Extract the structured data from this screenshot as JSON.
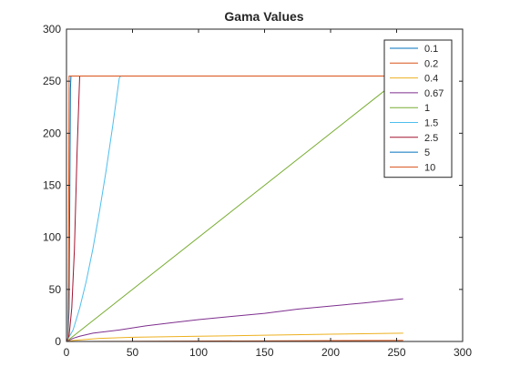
{
  "chart_data": {
    "type": "line",
    "title": "Gama Values",
    "xlabel": "",
    "ylabel": "",
    "xlim": [
      0,
      300
    ],
    "ylim": [
      0,
      300
    ],
    "xticks": [
      0,
      50,
      100,
      150,
      200,
      250,
      300
    ],
    "yticks": [
      0,
      50,
      100,
      150,
      200,
      250,
      300
    ],
    "grid": false,
    "legend_position": "top-right",
    "series": [
      {
        "name": "0.1",
        "color": "#0072BD",
        "x": [
          0,
          255
        ],
        "y": [
          0,
          0
        ]
      },
      {
        "name": "0.2",
        "color": "#D95319",
        "x": [
          0,
          255
        ],
        "y": [
          0,
          1
        ]
      },
      {
        "name": "0.4",
        "color": "#EDB120",
        "x": [
          0,
          5,
          25,
          50,
          100,
          150,
          200,
          255
        ],
        "y": [
          0,
          1,
          3,
          4,
          5,
          6,
          7,
          8
        ]
      },
      {
        "name": "0.67",
        "color": "#7E2F8E",
        "x": [
          0,
          5,
          10,
          20,
          40,
          60,
          80,
          100,
          125,
          150,
          175,
          200,
          225,
          255
        ],
        "y": [
          0,
          3,
          5,
          8,
          11,
          15,
          18,
          21,
          24,
          27,
          31,
          34,
          37,
          41
        ]
      },
      {
        "name": "1",
        "color": "#77AC30",
        "x": [
          0,
          255
        ],
        "y": [
          0,
          255
        ]
      },
      {
        "name": "1.5",
        "color": "#4DBEEE",
        "x": [
          0,
          5,
          10,
          15,
          20,
          25,
          30,
          35,
          40,
          41
        ],
        "y": [
          0,
          11,
          32,
          58,
          89,
          125,
          164,
          207,
          253,
          255
        ]
      },
      {
        "name": "2.5",
        "color": "#A2142F",
        "x": [
          0,
          2,
          4,
          6,
          8,
          10,
          11,
          12
        ],
        "y": [
          0,
          6,
          32,
          88,
          181,
          255,
          255,
          255
        ]
      },
      {
        "name": "5",
        "color": "#0072BD",
        "x": [
          0,
          1,
          2,
          3,
          3.4
        ],
        "y": [
          0,
          1,
          32,
          243,
          255
        ]
      },
      {
        "name": "10",
        "color": "#D95319",
        "x": [
          0,
          1,
          1.5,
          2,
          2.2
        ],
        "y": [
          0,
          1,
          58,
          255,
          255
        ]
      }
    ],
    "plateau": {
      "y": 255,
      "x_to": 255
    }
  }
}
